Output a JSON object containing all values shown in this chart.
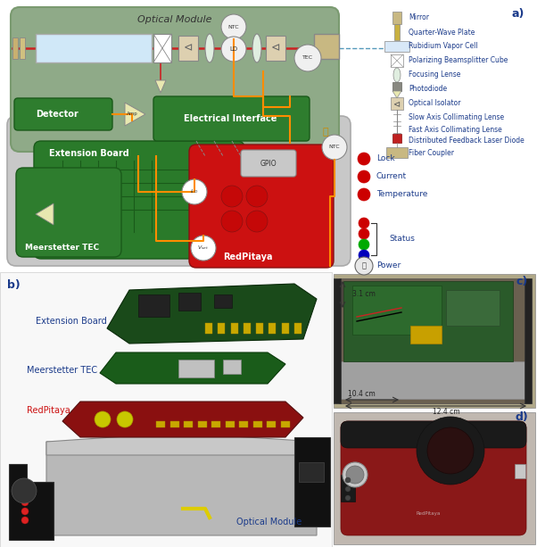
{
  "figure_width": 6.02,
  "figure_height": 6.13,
  "dpi": 100,
  "bg": "#ffffff",
  "panel_a_label": "a)",
  "panel_b_label": "b)",
  "panel_c_label": "c)",
  "panel_d_label": "d)",
  "dim_31": "3.1 cm",
  "dim_104": "10.4 cm",
  "dim_124": "12.4 cm",
  "legend_labels": [
    "Mirror",
    "Quarter-Wave Plate",
    "Rubidium Vapor Cell",
    "Polarizing Beamsplitter Cube",
    "Focusing Lense",
    "Photodiode",
    "Optical Isolator",
    "Slow Axis Collimating Lense",
    "Fast Axis Collimating Lense",
    "Distributed Feedback Laser Diode",
    "Fiber Coupler"
  ],
  "colors": {
    "green_mod": "#8aa882",
    "green_dark": "#2e7d2e",
    "green_board": "#2a7a2a",
    "green_meers": "#1e6a1e",
    "red_rp": "#cc1111",
    "gray_ext": "#c0c0c0",
    "orange": "#ff8c00",
    "red_beam": "#cc2222",
    "blue_line": "#5599bb",
    "tan": "#c8b882",
    "white": "#ffffff",
    "text_blue": "#1a3a8a",
    "text_dark": "#222222",
    "black": "#111111",
    "light_gray": "#e8e8e8",
    "ntc_gray": "#e0e0e0",
    "gpio_gray": "#c0c0c8"
  }
}
